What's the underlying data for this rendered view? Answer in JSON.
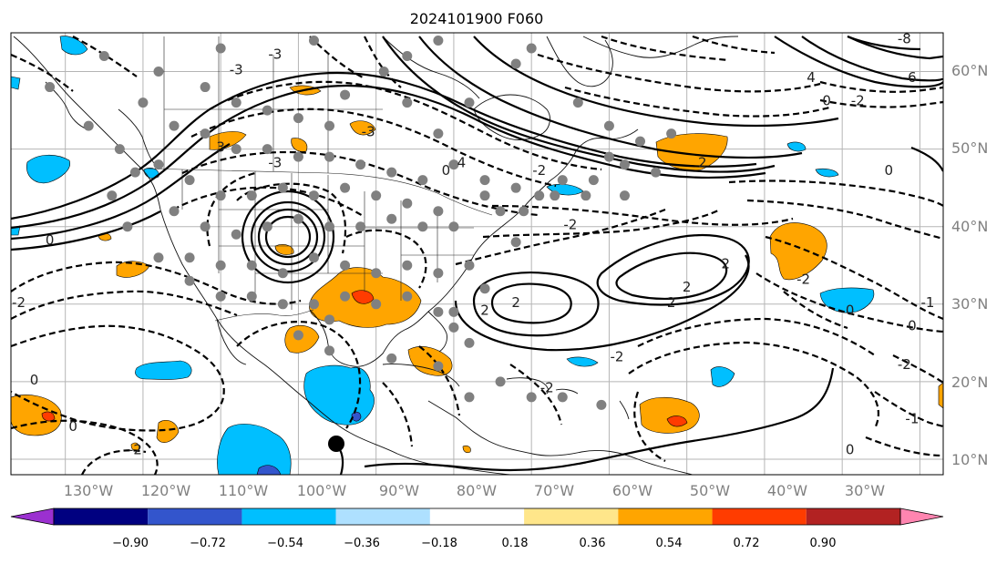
{
  "title": "2024101900 F060",
  "map": {
    "lat_labels": [
      "60°N",
      "50°N",
      "40°N",
      "30°N",
      "20°N",
      "10°N"
    ],
    "lon_labels": [
      "130°W",
      "120°W",
      "110°W",
      "100°W",
      "90°W",
      "80°W",
      "70°W",
      "60°W",
      "50°W",
      "40°W",
      "30°W"
    ],
    "extent": {
      "lon_min": -137,
      "lon_max": -17,
      "lat_min": 8,
      "lat_max": 65
    }
  },
  "colorbar": {
    "ticks": [
      "−0.90",
      "−0.72",
      "−0.54",
      "−0.36",
      "−0.18",
      "0.18",
      "0.36",
      "0.54",
      "0.72",
      "0.90"
    ],
    "colors": [
      "#9b30d0",
      "#000080",
      "#3355cc",
      "#00bfff",
      "#aee0ff",
      "#ffffff",
      "#ffe68a",
      "#ffa500",
      "#ff3c00",
      "#b22222",
      "#ff85b0"
    ]
  },
  "contour_labels": [
    {
      "text": "0",
      "lon": -132,
      "lat": 38
    },
    {
      "text": "-2",
      "lon": -136,
      "lat": 30
    },
    {
      "text": "0",
      "lon": -134,
      "lat": 20
    },
    {
      "text": "0",
      "lon": -129,
      "lat": 14
    },
    {
      "text": "-2",
      "lon": -121,
      "lat": 11
    },
    {
      "text": "-3",
      "lon": -103,
      "lat": 48
    },
    {
      "text": "-3",
      "lon": -108,
      "lat": 60
    },
    {
      "text": "-3",
      "lon": -103,
      "lat": 62
    },
    {
      "text": "3",
      "lon": -110,
      "lat": 50
    },
    {
      "text": "-3",
      "lon": -91,
      "lat": 52
    },
    {
      "text": "0",
      "lon": -81,
      "lat": 47
    },
    {
      "text": "4",
      "lon": -79,
      "lat": 48
    },
    {
      "text": "-2",
      "lon": -69,
      "lat": 47
    },
    {
      "text": "2",
      "lon": -48,
      "lat": 48
    },
    {
      "text": "-2",
      "lon": -65,
      "lat": 40
    },
    {
      "text": "2",
      "lon": -76,
      "lat": 29
    },
    {
      "text": "2",
      "lon": -72,
      "lat": 30
    },
    {
      "text": "2",
      "lon": -52,
      "lat": 30
    },
    {
      "text": "2",
      "lon": -50,
      "lat": 32
    },
    {
      "text": "2",
      "lon": -45,
      "lat": 35
    },
    {
      "text": "-2",
      "lon": -35,
      "lat": 33
    },
    {
      "text": "0",
      "lon": -29,
      "lat": 29
    },
    {
      "text": "0",
      "lon": -21,
      "lat": 27
    },
    {
      "text": "-1",
      "lon": -19,
      "lat": 30
    },
    {
      "text": "-2",
      "lon": -22,
      "lat": 22
    },
    {
      "text": "-1",
      "lon": -21,
      "lat": 15
    },
    {
      "text": "0",
      "lon": -29,
      "lat": 11
    },
    {
      "text": "0",
      "lon": -24,
      "lat": 47
    },
    {
      "text": "4",
      "lon": -34,
      "lat": 59
    },
    {
      "text": "6",
      "lon": -21,
      "lat": 59
    },
    {
      "text": "-8",
      "lon": -22,
      "lat": 64
    },
    {
      "text": "-2",
      "lon": -28,
      "lat": 56
    },
    {
      "text": "0",
      "lon": -32,
      "lat": 56
    },
    {
      "text": "-2",
      "lon": -68,
      "lat": 19
    },
    {
      "text": "-2",
      "lon": -59,
      "lat": 23
    }
  ]
}
